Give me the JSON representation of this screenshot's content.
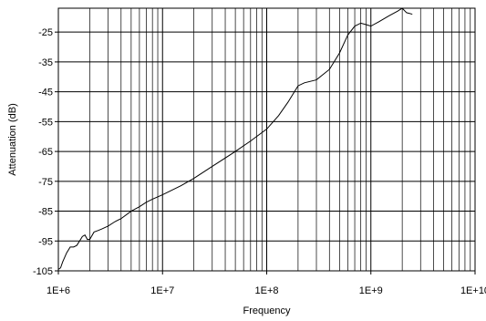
{
  "chart_data": {
    "type": "line",
    "title": "",
    "xlabel": "Frequency",
    "ylabel": "Attenuation (dB)",
    "x_scale": "log",
    "xlim": [
      1000000,
      10000000000
    ],
    "ylim": [
      -105,
      -17
    ],
    "x_ticks": [
      {
        "value": 1000000,
        "label": "1E+6"
      },
      {
        "value": 10000000,
        "label": "1E+7"
      },
      {
        "value": 100000000,
        "label": "1E+8"
      },
      {
        "value": 1000000000,
        "label": "1E+9"
      },
      {
        "value": 10000000000,
        "label": "1E+10"
      }
    ],
    "y_ticks": [
      {
        "value": -25,
        "label": "-25"
      },
      {
        "value": -35,
        "label": "-35"
      },
      {
        "value": -45,
        "label": "-45"
      },
      {
        "value": -55,
        "label": "-55"
      },
      {
        "value": -65,
        "label": "-65"
      },
      {
        "value": -75,
        "label": "-75"
      },
      {
        "value": -85,
        "label": "-85"
      },
      {
        "value": -95,
        "label": "-95"
      },
      {
        "value": -105,
        "label": "-105"
      }
    ],
    "grid": true,
    "line_color": "#000000",
    "series": [
      {
        "x": [
          1000000,
          1050000,
          1100000,
          1200000,
          1300000,
          1400000,
          1500000,
          1600000,
          1700000,
          1800000,
          1900000,
          2000000,
          2200000,
          2400000,
          2600000,
          3000000,
          3500000,
          4000000,
          5000000,
          6000000,
          7000000,
          8000000,
          10000000,
          15000000,
          20000000,
          30000000,
          50000000,
          70000000,
          100000000,
          130000000,
          160000000,
          200000000,
          230000000,
          300000000,
          400000000,
          500000000,
          600000000,
          700000000,
          800000000,
          900000000,
          1000000000,
          1200000000,
          1500000000,
          1800000000,
          2000000000,
          2200000000,
          2500000000
        ],
        "y": [
          -104.5,
          -104,
          -102,
          -99,
          -97,
          -97,
          -96.5,
          -95,
          -93.5,
          -93,
          -94.5,
          -94.5,
          -92,
          -91.5,
          -91,
          -90,
          -88.5,
          -87.5,
          -85,
          -83.5,
          -82,
          -81,
          -79.5,
          -76.5,
          -74,
          -70,
          -65,
          -61.5,
          -57.5,
          -53,
          -48.5,
          -43,
          -42,
          -41,
          -37.5,
          -32,
          -26,
          -23,
          -22,
          -22.5,
          -23,
          -21.5,
          -19.5,
          -18,
          -17,
          -18.5,
          -19
        ]
      }
    ]
  }
}
